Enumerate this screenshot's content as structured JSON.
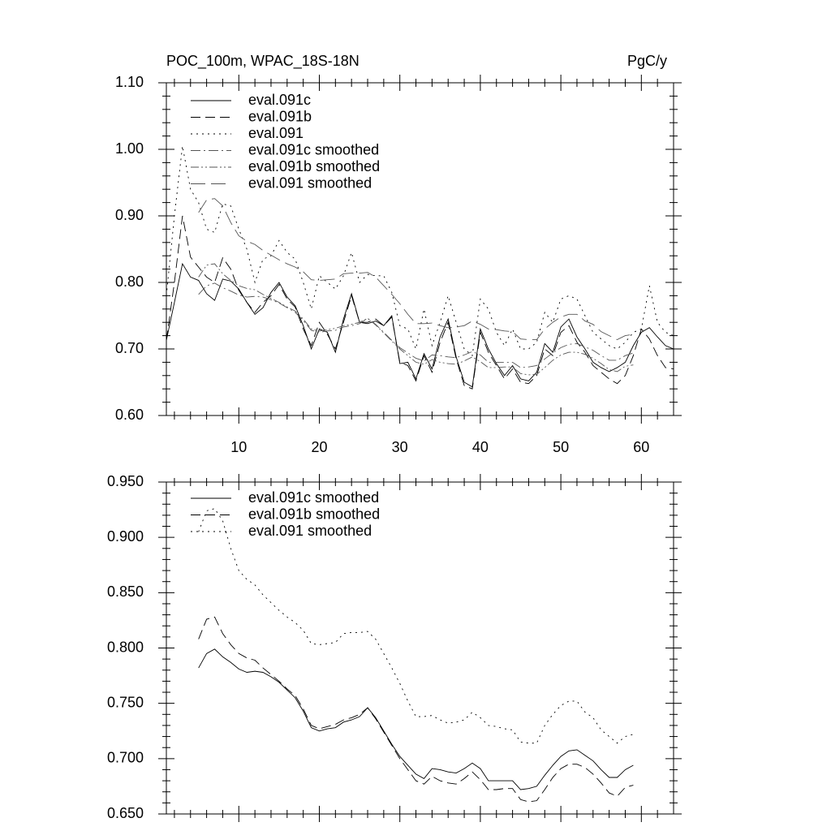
{
  "chart_data": [
    {
      "type": "line",
      "title": "POC_100m, WPAC_18S-18N",
      "units": "PgC/y",
      "x": [
        1,
        2,
        3,
        4,
        5,
        6,
        7,
        8,
        9,
        10,
        11,
        12,
        13,
        14,
        15,
        16,
        17,
        18,
        19,
        20,
        21,
        22,
        23,
        24,
        25,
        26,
        27,
        28,
        29,
        30,
        31,
        32,
        33,
        34,
        35,
        36,
        37,
        38,
        39,
        40,
        41,
        42,
        43,
        44,
        45,
        46,
        47,
        48,
        49,
        50,
        51,
        52,
        53,
        54,
        55,
        56,
        57,
        58,
        59,
        60,
        61,
        62,
        63,
        64
      ],
      "xlim": [
        1,
        64
      ],
      "xticks": [
        10,
        20,
        30,
        40,
        50,
        60
      ],
      "ylim": [
        0.6,
        1.1
      ],
      "yticks": [
        {
          "value": 0.6,
          "label": "0.60"
        },
        {
          "value": 0.7,
          "label": "0.70"
        },
        {
          "value": 0.8,
          "label": "0.80"
        },
        {
          "value": 0.9,
          "label": "0.90"
        },
        {
          "value": 1.0,
          "label": "1.00"
        },
        {
          "value": 1.1,
          "label": "1.10"
        }
      ],
      "series": [
        {
          "name": "eval.091c",
          "color": "#000000",
          "dash": "solid",
          "values": [
            0.713,
            0.77,
            0.828,
            0.808,
            0.803,
            0.783,
            0.773,
            0.805,
            0.802,
            0.79,
            0.77,
            0.752,
            0.762,
            0.785,
            0.8,
            0.778,
            0.765,
            0.735,
            0.7,
            0.73,
            0.725,
            0.695,
            0.745,
            0.783,
            0.74,
            0.738,
            0.742,
            0.735,
            0.75,
            0.678,
            0.68,
            0.655,
            0.693,
            0.67,
            0.718,
            0.745,
            0.688,
            0.65,
            0.643,
            0.73,
            0.7,
            0.678,
            0.66,
            0.675,
            0.655,
            0.652,
            0.665,
            0.708,
            0.695,
            0.733,
            0.745,
            0.718,
            0.7,
            0.68,
            0.672,
            0.666,
            0.672,
            0.68,
            0.705,
            0.725,
            0.732,
            0.718,
            0.705,
            0.7
          ]
        },
        {
          "name": "eval.091b",
          "color": "#000000",
          "dash": "dashed",
          "values": [
            0.713,
            0.8,
            0.9,
            0.838,
            0.823,
            0.808,
            0.8,
            0.837,
            0.82,
            0.788,
            0.77,
            0.755,
            0.77,
            0.78,
            0.797,
            0.775,
            0.763,
            0.73,
            0.705,
            0.74,
            0.722,
            0.7,
            0.74,
            0.78,
            0.74,
            0.74,
            0.745,
            0.735,
            0.748,
            0.68,
            0.675,
            0.652,
            0.69,
            0.665,
            0.71,
            0.74,
            0.685,
            0.645,
            0.64,
            0.725,
            0.695,
            0.675,
            0.655,
            0.67,
            0.65,
            0.648,
            0.66,
            0.7,
            0.69,
            0.725,
            0.735,
            0.71,
            0.695,
            0.675,
            0.665,
            0.655,
            0.648,
            0.66,
            0.69,
            0.73,
            0.715,
            0.69,
            0.672,
            0.67
          ]
        },
        {
          "name": "eval.091",
          "color": "#000000",
          "dash": "dotted",
          "values": [
            0.78,
            0.9,
            1.005,
            0.94,
            0.92,
            0.88,
            0.875,
            0.918,
            0.915,
            0.88,
            0.85,
            0.8,
            0.835,
            0.84,
            0.863,
            0.845,
            0.835,
            0.8,
            0.76,
            0.81,
            0.8,
            0.79,
            0.81,
            0.845,
            0.8,
            0.812,
            0.81,
            0.81,
            0.785,
            0.735,
            0.73,
            0.7,
            0.76,
            0.705,
            0.74,
            0.78,
            0.74,
            0.7,
            0.69,
            0.775,
            0.76,
            0.725,
            0.705,
            0.73,
            0.7,
            0.7,
            0.71,
            0.755,
            0.74,
            0.775,
            0.78,
            0.775,
            0.75,
            0.725,
            0.715,
            0.705,
            0.7,
            0.71,
            0.725,
            0.73,
            0.795,
            0.74,
            0.725,
            0.72
          ]
        },
        {
          "name": "eval.091c smoothed",
          "color": "#555555",
          "dash": "dashdot",
          "values": [
            null,
            null,
            null,
            null,
            0.782,
            0.795,
            0.799,
            0.792,
            0.787,
            0.781,
            0.778,
            0.779,
            0.778,
            0.774,
            0.769,
            0.762,
            0.755,
            0.743,
            0.728,
            0.725,
            0.727,
            0.728,
            0.733,
            0.735,
            0.738,
            0.746,
            0.737,
            0.725,
            0.713,
            0.702,
            0.694,
            0.686,
            0.682,
            0.691,
            0.69,
            0.688,
            0.687,
            0.691,
            0.696,
            0.691,
            0.68,
            0.68,
            0.68,
            0.68,
            0.672,
            0.673,
            0.675,
            0.685,
            0.694,
            0.702,
            0.707,
            0.708,
            0.703,
            0.698,
            0.69,
            0.683,
            0.683,
            0.69,
            0.694,
            null,
            null,
            null,
            null,
            null
          ]
        },
        {
          "name": "eval.091b smoothed",
          "color": "#555555",
          "dash": "dashdotdot",
          "values": [
            null,
            null,
            null,
            null,
            0.808,
            0.826,
            0.828,
            0.813,
            0.803,
            0.795,
            0.791,
            0.789,
            0.782,
            0.776,
            0.77,
            0.763,
            0.757,
            0.745,
            0.73,
            0.727,
            0.729,
            0.731,
            0.735,
            0.737,
            0.74,
            0.746,
            0.736,
            0.724,
            0.712,
            0.7,
            0.69,
            0.68,
            0.677,
            0.684,
            0.68,
            0.678,
            0.677,
            0.682,
            0.688,
            0.681,
            0.672,
            0.672,
            0.673,
            0.673,
            0.663,
            0.661,
            0.662,
            0.672,
            0.683,
            0.691,
            0.695,
            0.695,
            0.692,
            0.686,
            0.678,
            0.669,
            0.666,
            0.674,
            0.676,
            null,
            null,
            null,
            null,
            null
          ]
        },
        {
          "name": "eval.091 smoothed",
          "color": "#555555",
          "dash": "longdash",
          "values": [
            null,
            null,
            null,
            null,
            0.905,
            0.924,
            0.926,
            0.915,
            0.89,
            0.87,
            0.862,
            0.857,
            0.848,
            0.841,
            0.834,
            0.828,
            0.823,
            0.816,
            0.804,
            0.803,
            0.804,
            0.805,
            0.813,
            0.814,
            0.814,
            0.815,
            0.808,
            0.795,
            0.782,
            0.768,
            0.752,
            0.738,
            0.738,
            0.739,
            0.735,
            0.732,
            0.733,
            0.735,
            0.742,
            0.737,
            0.73,
            0.729,
            0.727,
            0.726,
            0.715,
            0.714,
            0.714,
            0.73,
            0.74,
            0.748,
            0.752,
            0.752,
            0.742,
            0.737,
            0.726,
            0.72,
            0.714,
            0.72,
            0.722,
            null,
            null,
            null,
            null,
            null
          ]
        }
      ]
    },
    {
      "type": "line",
      "x": [
        1,
        2,
        3,
        4,
        5,
        6,
        7,
        8,
        9,
        10,
        11,
        12,
        13,
        14,
        15,
        16,
        17,
        18,
        19,
        20,
        21,
        22,
        23,
        24,
        25,
        26,
        27,
        28,
        29,
        30,
        31,
        32,
        33,
        34,
        35,
        36,
        37,
        38,
        39,
        40,
        41,
        42,
        43,
        44,
        45,
        46,
        47,
        48,
        49,
        50,
        51,
        52,
        53,
        54,
        55,
        56,
        57,
        58,
        59,
        60,
        61,
        62,
        63,
        64
      ],
      "xlim": [
        1,
        64
      ],
      "xticks": [
        10,
        20,
        30,
        40,
        50,
        60
      ],
      "ylim": [
        0.65,
        0.95
      ],
      "yticks": [
        {
          "value": 0.65,
          "label": "0.650"
        },
        {
          "value": 0.7,
          "label": "0.700"
        },
        {
          "value": 0.75,
          "label": "0.750"
        },
        {
          "value": 0.8,
          "label": "0.800"
        },
        {
          "value": 0.85,
          "label": "0.850"
        },
        {
          "value": 0.9,
          "label": "0.900"
        },
        {
          "value": 0.95,
          "label": "0.950"
        }
      ],
      "series": [
        {
          "name": "eval.091c smoothed",
          "color": "#000000",
          "dash": "solid",
          "values": [
            null,
            null,
            null,
            null,
            0.782,
            0.795,
            0.799,
            0.792,
            0.787,
            0.781,
            0.778,
            0.779,
            0.778,
            0.774,
            0.769,
            0.762,
            0.755,
            0.743,
            0.728,
            0.725,
            0.727,
            0.728,
            0.733,
            0.735,
            0.738,
            0.746,
            0.737,
            0.725,
            0.713,
            0.702,
            0.694,
            0.686,
            0.682,
            0.691,
            0.69,
            0.688,
            0.687,
            0.691,
            0.696,
            0.691,
            0.68,
            0.68,
            0.68,
            0.68,
            0.672,
            0.673,
            0.675,
            0.685,
            0.694,
            0.702,
            0.707,
            0.708,
            0.703,
            0.698,
            0.69,
            0.683,
            0.683,
            0.69,
            0.694,
            null,
            null,
            null,
            null,
            null
          ]
        },
        {
          "name": "eval.091b smoothed",
          "color": "#000000",
          "dash": "dashed",
          "values": [
            null,
            null,
            null,
            null,
            0.808,
            0.826,
            0.828,
            0.813,
            0.803,
            0.795,
            0.791,
            0.789,
            0.782,
            0.776,
            0.77,
            0.763,
            0.757,
            0.745,
            0.73,
            0.727,
            0.729,
            0.731,
            0.735,
            0.737,
            0.74,
            0.746,
            0.736,
            0.724,
            0.712,
            0.7,
            0.69,
            0.68,
            0.677,
            0.684,
            0.68,
            0.678,
            0.677,
            0.682,
            0.688,
            0.681,
            0.672,
            0.672,
            0.673,
            0.673,
            0.663,
            0.661,
            0.662,
            0.672,
            0.683,
            0.691,
            0.695,
            0.695,
            0.692,
            0.686,
            0.678,
            0.669,
            0.666,
            0.674,
            0.676,
            null,
            null,
            null,
            null,
            null
          ]
        },
        {
          "name": "eval.091 smoothed",
          "color": "#000000",
          "dash": "dotted",
          "values": [
            null,
            null,
            null,
            null,
            0.905,
            0.924,
            0.926,
            0.915,
            0.89,
            0.87,
            0.862,
            0.857,
            0.848,
            0.841,
            0.834,
            0.828,
            0.823,
            0.816,
            0.804,
            0.803,
            0.804,
            0.805,
            0.813,
            0.814,
            0.814,
            0.815,
            0.808,
            0.795,
            0.782,
            0.768,
            0.752,
            0.738,
            0.738,
            0.739,
            0.735,
            0.732,
            0.733,
            0.735,
            0.742,
            0.737,
            0.73,
            0.729,
            0.727,
            0.726,
            0.715,
            0.714,
            0.714,
            0.73,
            0.74,
            0.748,
            0.752,
            0.752,
            0.742,
            0.737,
            0.726,
            0.72,
            0.714,
            0.72,
            0.722,
            null,
            null,
            null,
            null,
            null
          ]
        }
      ]
    }
  ]
}
